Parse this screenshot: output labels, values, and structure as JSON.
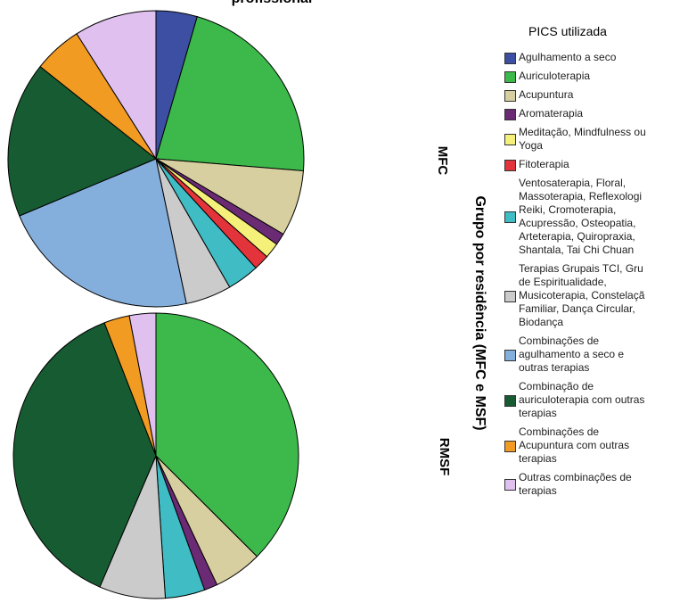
{
  "chart_data": {
    "type": "pie",
    "title": "profissional",
    "axis_label": "Grupo por residência (MFC e MSF)",
    "legend_title": "PICS utilizada",
    "categories": [
      "Agulhamento a seco",
      "Auriculoterapia",
      "Acupuntura",
      "Aromaterapia",
      "Meditação, Mindfulness ou\nYoga",
      "Fitoterapia",
      "Ventosaterapia, Floral,\nMassoterapia, Reflexologi\nReiki, Cromoterapia,\nAcupressão, Osteopatia,\nArteterapia, Quiropraxia,\nShantala, Tai Chi Chuan",
      "Terapias Grupais TCI, Gru\nde Espiritualidade,\nMusicoterapia, Constelaçã\nFamiliar, Dança Circular,\nBiodança",
      "Combinações de\nagulhamento a seco e\noutras terapias",
      "Combinação de\nauriculoterapia com outras\nterapias",
      "Combinações de\nAcupuntura com outras\nterapias",
      "Outras combinações de\nterapias"
    ],
    "colors": [
      "#3c4fa3",
      "#3cb94a",
      "#d8cfa0",
      "#6b2a74",
      "#f5f07a",
      "#e2343a",
      "#3fbcc4",
      "#cbcbcb",
      "#84aedc",
      "#165b31",
      "#f29b22",
      "#e0c0ef"
    ],
    "series": [
      {
        "name": "MFC",
        "values": [
          4.5,
          21.8,
          7.2,
          1.3,
          1.7,
          1.7,
          3.5,
          5,
          22,
          17,
          5.3,
          9
        ]
      },
      {
        "name": "RMSF",
        "values": [
          0,
          37.5,
          5.5,
          1.5,
          0,
          0,
          4.5,
          7.5,
          0,
          37.7,
          2.9,
          3
        ]
      }
    ]
  }
}
